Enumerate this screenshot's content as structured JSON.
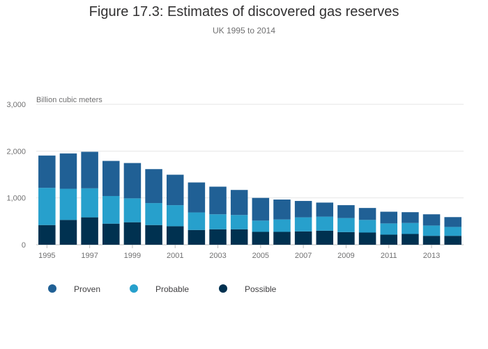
{
  "title": "Figure 17.3: Estimates of discovered gas reserves",
  "subtitle": "UK 1995 to 2014",
  "chart_data": {
    "type": "bar",
    "stacked": true,
    "ylabel": "Billion cubic meters",
    "ylim": [
      0,
      3000
    ],
    "yticks": [
      0,
      1000,
      2000,
      3000
    ],
    "ytick_labels": [
      "0",
      "1,000",
      "2,000",
      "3,000"
    ],
    "categories": [
      "1995",
      "1996",
      "1997",
      "1998",
      "1999",
      "2000",
      "2001",
      "2002",
      "2003",
      "2004",
      "2005",
      "2006",
      "2007",
      "2008",
      "2009",
      "2010",
      "2011",
      "2012",
      "2013",
      "2014"
    ],
    "xtick_labels": [
      "1995",
      "1997",
      "1999",
      "2001",
      "2003",
      "2005",
      "2007",
      "2009",
      "2011",
      "2013"
    ],
    "grid": true,
    "legend_position": "bottom",
    "series": [
      {
        "name": "Possible",
        "color": "#003150",
        "values": [
          420,
          530,
          585,
          450,
          480,
          420,
          395,
          315,
          330,
          330,
          275,
          275,
          285,
          300,
          270,
          260,
          215,
          230,
          190,
          190
        ]
      },
      {
        "name": "Probable",
        "color": "#27a0cc",
        "values": [
          795,
          665,
          620,
          590,
          510,
          470,
          450,
          375,
          320,
          305,
          240,
          265,
          300,
          300,
          300,
          270,
          240,
          235,
          220,
          190
        ]
      },
      {
        "name": "Proven",
        "color": "#206095",
        "values": [
          690,
          755,
          780,
          750,
          755,
          725,
          650,
          640,
          590,
          535,
          485,
          425,
          350,
          300,
          275,
          255,
          250,
          230,
          240,
          210
        ]
      }
    ]
  },
  "legend": [
    {
      "label": "Proven",
      "color": "#206095"
    },
    {
      "label": "Probable",
      "color": "#27a0cc"
    },
    {
      "label": "Possible",
      "color": "#003150"
    }
  ]
}
